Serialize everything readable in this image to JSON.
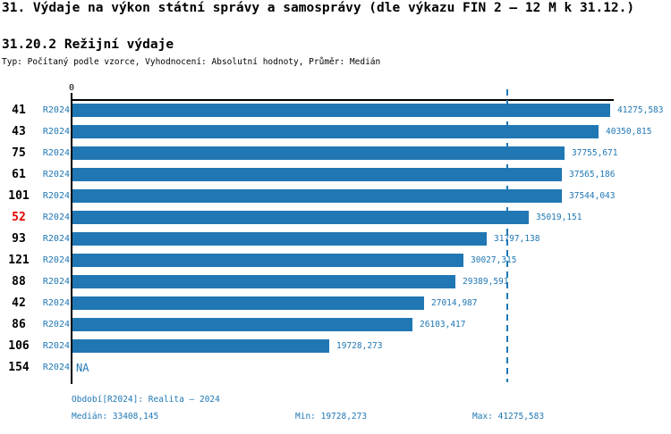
{
  "title": "31. Výdaje na výkon státní správy a samosprávy (dle výkazu FIN 2 – 12 M k 31.12.)",
  "subtitle": "31.20.2 Režijní výdaje",
  "meta_line": "Typ: Počítaný podle vzorce, Vyhodnocení: Absolutní hodnoty, Průměr: Medián",
  "colors": {
    "bar": "#2077b4",
    "text_blue": "#1f77b4",
    "highlight_red": "#e60000",
    "axis": "#000000"
  },
  "chart_data": {
    "type": "bar",
    "orientation": "horizontal",
    "axis_zero_label": "0",
    "period_label": "R2024",
    "xlim": [
      0,
      41600
    ],
    "median_value": 33408.145,
    "min_value": 19728.273,
    "max_value": 41275.583,
    "rows": [
      {
        "rank": "41",
        "value": 41275.583,
        "label": "41275,583",
        "highlight": false
      },
      {
        "rank": "43",
        "value": 40350.815,
        "label": "40350,815",
        "highlight": false
      },
      {
        "rank": "75",
        "value": 37755.671,
        "label": "37755,671",
        "highlight": false
      },
      {
        "rank": "61",
        "value": 37565.186,
        "label": "37565,186",
        "highlight": false
      },
      {
        "rank": "101",
        "value": 37544.043,
        "label": "37544,043",
        "highlight": false
      },
      {
        "rank": "52",
        "value": 35019.151,
        "label": "35019,151",
        "highlight": true
      },
      {
        "rank": "93",
        "value": 31797.138,
        "label": "31797,138",
        "highlight": false
      },
      {
        "rank": "121",
        "value": 30027.315,
        "label": "30027,315",
        "highlight": false
      },
      {
        "rank": "88",
        "value": 29389.591,
        "label": "29389,591",
        "highlight": false
      },
      {
        "rank": "42",
        "value": 27014.987,
        "label": "27014,987",
        "highlight": false
      },
      {
        "rank": "86",
        "value": 26103.417,
        "label": "26103,417",
        "highlight": false
      },
      {
        "rank": "106",
        "value": 19728.273,
        "label": "19728,273",
        "highlight": false
      },
      {
        "rank": "154",
        "value": null,
        "label": "NA",
        "highlight": false
      }
    ]
  },
  "footer": {
    "period_line": "Období[R2024]: Realita – 2024",
    "median": "Medián: 33408,145",
    "min": "Min: 19728,273",
    "max": "Max: 41275,583"
  }
}
